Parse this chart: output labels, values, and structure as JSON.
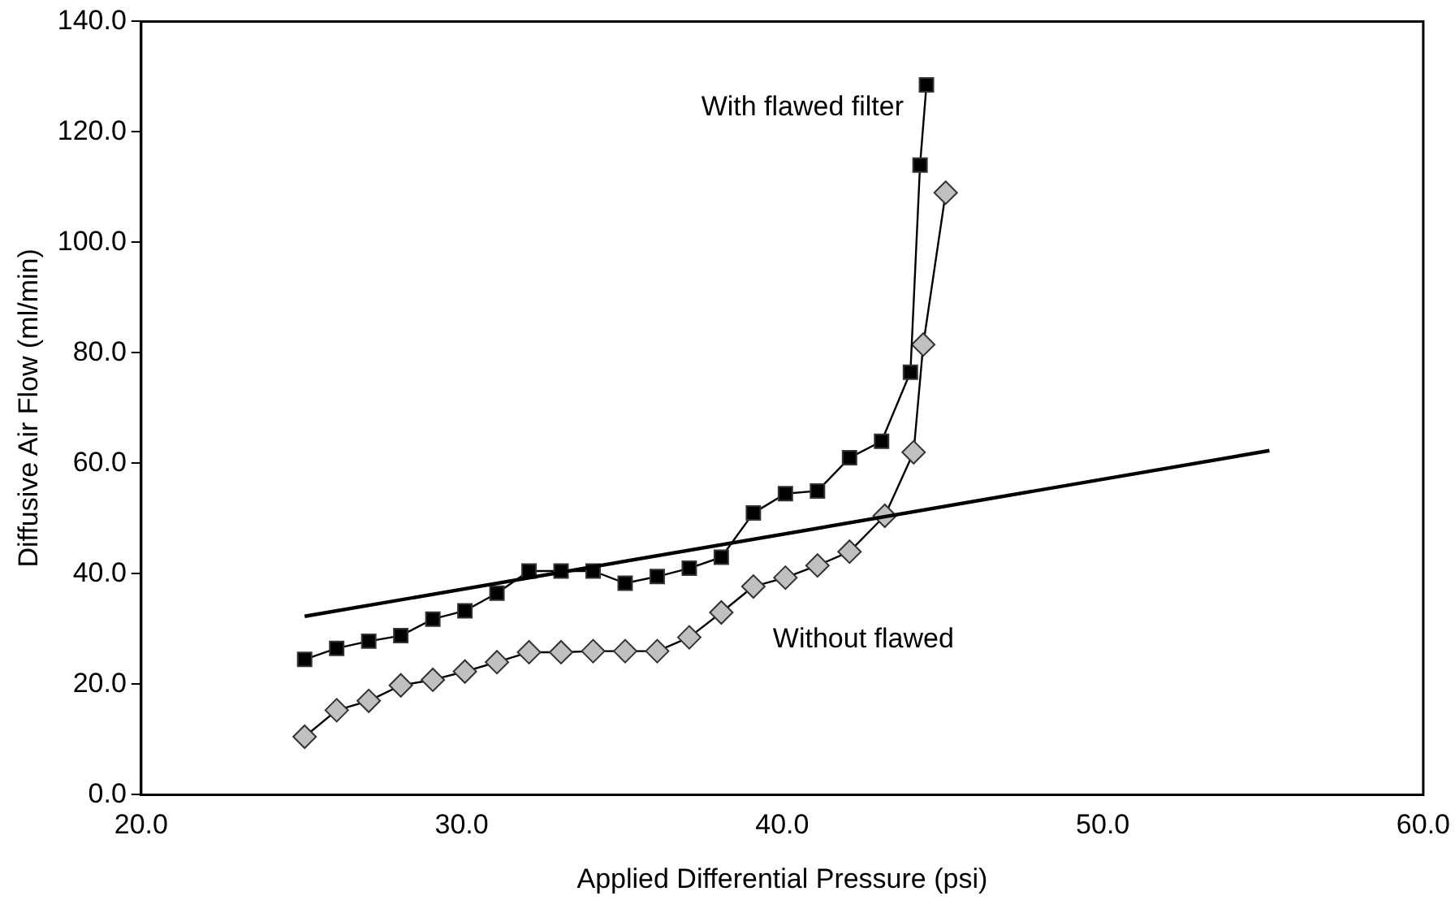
{
  "chart_data": {
    "type": "line",
    "xlabel": "Applied Differential Pressure (psi)",
    "ylabel": "Diffusive Air Flow (ml/min)",
    "xlim": [
      20,
      60
    ],
    "ylim": [
      0,
      140
    ],
    "xticks": [
      {
        "value": 20,
        "label": "20.0"
      },
      {
        "value": 30,
        "label": "30.0"
      },
      {
        "value": 40,
        "label": "40.0"
      },
      {
        "value": 50,
        "label": "50.0"
      },
      {
        "value": 60,
        "label": "60.0"
      }
    ],
    "yticks": [
      {
        "value": 0,
        "label": "0.0"
      },
      {
        "value": 20,
        "label": "20.0"
      },
      {
        "value": 40,
        "label": "40.0"
      },
      {
        "value": 60,
        "label": "60.0"
      },
      {
        "value": 80,
        "label": "80.0"
      },
      {
        "value": 100,
        "label": "100.0"
      },
      {
        "value": 120,
        "label": "120.0"
      },
      {
        "value": 140,
        "label": "140.0"
      }
    ],
    "grid": false,
    "legend": false,
    "series": [
      {
        "name": "With flawed filter",
        "marker": "square",
        "color": "#000000",
        "x": [
          25.1,
          26.1,
          27.1,
          28.1,
          29.1,
          30.1,
          31.1,
          32.1,
          33.1,
          34.1,
          35.1,
          36.1,
          37.1,
          38.1,
          39.1,
          40.1,
          41.1,
          42.1,
          43.1,
          44.0,
          44.3,
          44.5
        ],
        "values": [
          24.5,
          26.5,
          27.8,
          28.8,
          31.8,
          33.3,
          36.5,
          40.5,
          40.5,
          40.5,
          38.3,
          39.5,
          41.0,
          43.0,
          51.0,
          54.5,
          55.0,
          61.0,
          64.0,
          76.5,
          114.0,
          128.5
        ]
      },
      {
        "name": "Without flawed",
        "marker": "diamond",
        "color": "#c0c0c0",
        "x": [
          25.1,
          26.1,
          27.1,
          28.1,
          29.1,
          30.1,
          31.1,
          32.1,
          33.1,
          34.1,
          35.1,
          36.1,
          37.1,
          38.1,
          39.1,
          40.1,
          41.1,
          42.1,
          43.2,
          44.1,
          44.4,
          45.1
        ],
        "values": [
          10.5,
          15.3,
          17.0,
          19.8,
          20.8,
          22.3,
          24.0,
          25.8,
          25.8,
          26.0,
          26.0,
          26.0,
          28.5,
          33.0,
          37.7,
          39.3,
          41.5,
          44.0,
          50.5,
          62.0,
          81.5,
          109.0
        ]
      },
      {
        "marker": "none",
        "color": "#000000",
        "x": [
          25.1,
          55.2
        ],
        "values": [
          32.3,
          62.3
        ]
      }
    ]
  }
}
